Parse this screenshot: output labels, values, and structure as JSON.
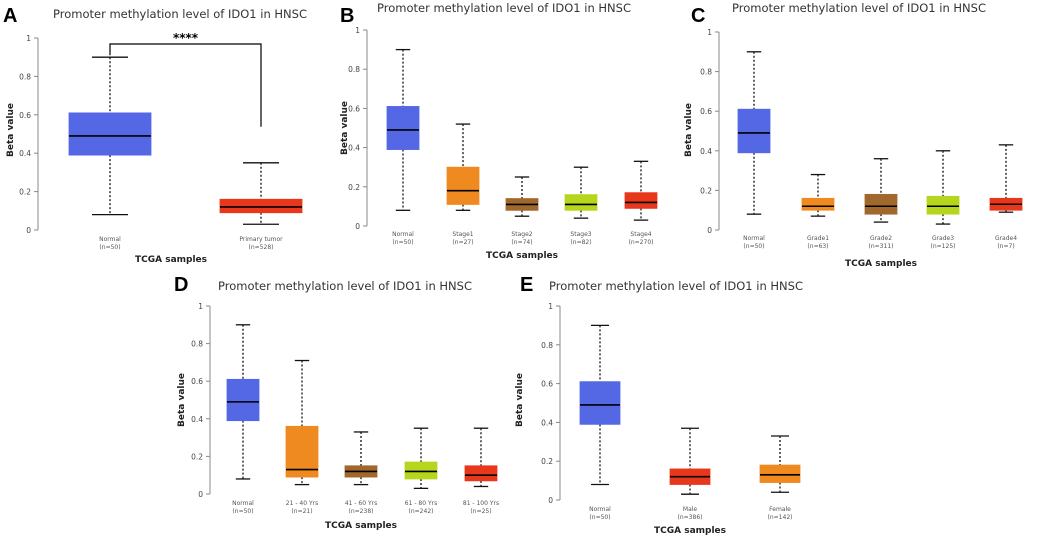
{
  "chart_data": [
    {
      "panel": "A",
      "type": "box",
      "title": "Promoter methylation level of IDO1 in HNSC",
      "xlabel": "TCGA samples",
      "ylabel": "Beta value",
      "ylim": [
        0,
        1
      ],
      "yticks": [
        "0",
        "0.2",
        "0.4",
        "0.6",
        "0.8",
        "1"
      ],
      "significance": "****",
      "categories": [
        {
          "name": "Normal",
          "n": "(n=50)",
          "min": 0.08,
          "q1": 0.39,
          "median": 0.49,
          "q3": 0.61,
          "max": 0.9,
          "color": "#5468e6"
        },
        {
          "name": "Primary tumor",
          "n": "(n=528)",
          "min": 0.03,
          "q1": 0.09,
          "median": 0.12,
          "q3": 0.16,
          "max": 0.35,
          "color": "#e8371b"
        }
      ]
    },
    {
      "panel": "B",
      "type": "box",
      "title": "Promoter methylation level of IDO1 in HNSC",
      "xlabel": "TCGA samples",
      "ylabel": "Beta value",
      "ylim": [
        0,
        1
      ],
      "yticks": [
        "0",
        "0.2",
        "0.4",
        "0.6",
        "0.8",
        "1"
      ],
      "categories": [
        {
          "name": "Normal",
          "n": "(n=50)",
          "min": 0.08,
          "q1": 0.39,
          "median": 0.49,
          "q3": 0.61,
          "max": 0.9,
          "color": "#5468e6"
        },
        {
          "name": "Stage1",
          "n": "(n=27)",
          "min": 0.08,
          "q1": 0.11,
          "median": 0.18,
          "q3": 0.3,
          "max": 0.52,
          "color": "#ef8a21"
        },
        {
          "name": "Stage2",
          "n": "(n=74)",
          "min": 0.05,
          "q1": 0.08,
          "median": 0.11,
          "q3": 0.14,
          "max": 0.25,
          "color": "#a0682d"
        },
        {
          "name": "Stage3",
          "n": "(n=82)",
          "min": 0.04,
          "q1": 0.08,
          "median": 0.11,
          "q3": 0.16,
          "max": 0.3,
          "color": "#b5d61c"
        },
        {
          "name": "Stage4",
          "n": "(n=270)",
          "min": 0.03,
          "q1": 0.09,
          "median": 0.12,
          "q3": 0.17,
          "max": 0.33,
          "color": "#e8371b"
        }
      ]
    },
    {
      "panel": "C",
      "type": "box",
      "title": "Promoter methylation level of IDO1 in HNSC",
      "xlabel": "TCGA samples",
      "ylabel": "Beta value",
      "ylim": [
        0,
        1
      ],
      "yticks": [
        "0",
        "0.2",
        "0.4",
        "0.6",
        "0.8",
        "1"
      ],
      "categories": [
        {
          "name": "Normal",
          "n": "(n=50)",
          "min": 0.08,
          "q1": 0.39,
          "median": 0.49,
          "q3": 0.61,
          "max": 0.9,
          "color": "#5468e6"
        },
        {
          "name": "Grade1",
          "n": "(n=63)",
          "min": 0.07,
          "q1": 0.1,
          "median": 0.12,
          "q3": 0.16,
          "max": 0.28,
          "color": "#ef8a21"
        },
        {
          "name": "Grade2",
          "n": "(n=311)",
          "min": 0.04,
          "q1": 0.08,
          "median": 0.12,
          "q3": 0.18,
          "max": 0.36,
          "color": "#a0682d"
        },
        {
          "name": "Grade3",
          "n": "(n=125)",
          "min": 0.03,
          "q1": 0.08,
          "median": 0.12,
          "q3": 0.17,
          "max": 0.4,
          "color": "#b5d61c"
        },
        {
          "name": "Grade4",
          "n": "(n=7)",
          "min": 0.09,
          "q1": 0.1,
          "median": 0.13,
          "q3": 0.16,
          "max": 0.43,
          "color": "#e8371b"
        }
      ]
    },
    {
      "panel": "D",
      "type": "box",
      "title": "Promoter methylation level of IDO1 in HNSC",
      "xlabel": "TCGA samples",
      "ylabel": "Beta value",
      "ylim": [
        0,
        1
      ],
      "yticks": [
        "0",
        "0.2",
        "0.4",
        "0.6",
        "0.8",
        "1"
      ],
      "categories": [
        {
          "name": "Normal",
          "n": "(n=50)",
          "min": 0.08,
          "q1": 0.39,
          "median": 0.49,
          "q3": 0.61,
          "max": 0.9,
          "color": "#5468e6"
        },
        {
          "name": "21 - 40 Yrs",
          "n": "(n=21)",
          "min": 0.05,
          "q1": 0.09,
          "median": 0.13,
          "q3": 0.36,
          "max": 0.71,
          "color": "#ef8a21"
        },
        {
          "name": "41 - 60 Yrs",
          "n": "(n=238)",
          "min": 0.05,
          "q1": 0.09,
          "median": 0.12,
          "q3": 0.15,
          "max": 0.33,
          "color": "#a0682d"
        },
        {
          "name": "61 - 80 Yrs",
          "n": "(n=242)",
          "min": 0.03,
          "q1": 0.08,
          "median": 0.12,
          "q3": 0.17,
          "max": 0.35,
          "color": "#b5d61c"
        },
        {
          "name": "81 - 100 Yrs",
          "n": "(n=25)",
          "min": 0.04,
          "q1": 0.07,
          "median": 0.1,
          "q3": 0.15,
          "max": 0.35,
          "color": "#e8371b"
        }
      ]
    },
    {
      "panel": "E",
      "type": "box",
      "title": "Promoter methylation level of IDO1 in HNSC",
      "xlabel": "TCGA samples",
      "ylabel": "Beta value",
      "ylim": [
        0,
        1
      ],
      "yticks": [
        "0",
        "0.2",
        "0.4",
        "0.6",
        "0.8",
        "1"
      ],
      "categories": [
        {
          "name": "Normal",
          "n": "(n=50)",
          "min": 0.08,
          "q1": 0.39,
          "median": 0.49,
          "q3": 0.61,
          "max": 0.9,
          "color": "#5468e6"
        },
        {
          "name": "Male",
          "n": "(n=386)",
          "min": 0.03,
          "q1": 0.08,
          "median": 0.12,
          "q3": 0.16,
          "max": 0.37,
          "color": "#e8371b"
        },
        {
          "name": "Female",
          "n": "(n=142)",
          "min": 0.04,
          "q1": 0.09,
          "median": 0.13,
          "q3": 0.18,
          "max": 0.33,
          "color": "#ef8a21"
        }
      ]
    }
  ]
}
